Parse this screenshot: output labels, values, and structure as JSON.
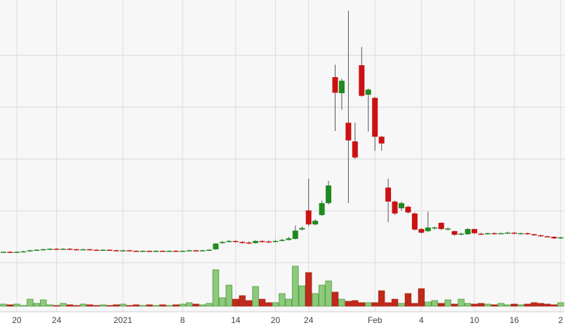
{
  "chart_data": {
    "type": "candlestick",
    "categories": [
      null,
      null,
      "20",
      null,
      null,
      null,
      null,
      null,
      "24",
      null,
      null,
      null,
      null,
      null,
      null,
      null,
      null,
      null,
      "2021",
      null,
      null,
      null,
      null,
      null,
      null,
      null,
      null,
      "8",
      null,
      null,
      null,
      null,
      null,
      null,
      null,
      "14",
      null,
      null,
      null,
      null,
      null,
      "20",
      null,
      null,
      null,
      null,
      "24",
      null,
      null,
      null,
      null,
      null,
      null,
      null,
      null,
      null,
      "Feb",
      null,
      null,
      null,
      null,
      null,
      null,
      "4",
      null,
      null,
      null,
      null,
      null,
      null,
      null,
      "10",
      null,
      null,
      null,
      null,
      null,
      "16",
      null,
      null,
      null,
      null,
      null,
      null,
      "2"
    ],
    "open": [
      20,
      21,
      20,
      21,
      22,
      24,
      25,
      26,
      27,
      26,
      27,
      26,
      25,
      26,
      25,
      24,
      25,
      24,
      23,
      24,
      23,
      22,
      23,
      22,
      23,
      22,
      23,
      22,
      23,
      24,
      23,
      24,
      26,
      38,
      40,
      42,
      40,
      39,
      38,
      42,
      41,
      40,
      42,
      44,
      46,
      64,
      101,
      74,
      92,
      115,
      358,
      327,
      270,
      234,
      381,
      324,
      318,
      243,
      145,
      118,
      105,
      108,
      95,
      65,
      61,
      66,
      77,
      64,
      61,
      55,
      55,
      65,
      56,
      55,
      57,
      56,
      57,
      58,
      56,
      57,
      55,
      53,
      51,
      50,
      47
    ],
    "high": [
      22,
      22,
      22,
      23,
      25,
      26,
      27,
      28,
      28,
      28,
      28,
      27,
      27,
      27,
      26,
      26,
      26,
      25,
      25,
      25,
      24,
      24,
      24,
      24,
      24,
      24,
      24,
      24,
      25,
      25,
      25,
      26,
      38,
      42,
      44,
      43,
      42,
      41,
      44,
      43,
      43,
      44,
      46,
      50,
      72,
      70,
      162,
      84,
      120,
      158,
      382,
      355,
      486,
      270,
      416,
      336,
      320,
      245,
      162,
      120,
      118,
      110,
      97,
      67,
      99,
      70,
      78,
      68,
      62,
      58,
      67,
      66,
      58,
      58,
      59,
      58,
      60,
      59,
      58,
      58,
      56,
      54,
      52,
      51,
      50
    ],
    "low": [
      19,
      19,
      19,
      20,
      21,
      23,
      24,
      25,
      25,
      25,
      25,
      24,
      24,
      24,
      23,
      23,
      23,
      22,
      22,
      22,
      21,
      21,
      21,
      21,
      21,
      21,
      21,
      21,
      22,
      22,
      22,
      23,
      25,
      36,
      39,
      39,
      37,
      36,
      37,
      39,
      39,
      39,
      41,
      43,
      45,
      62,
      70,
      72,
      90,
      112,
      254,
      295,
      115,
      200,
      320,
      253,
      216,
      216,
      78,
      92,
      100,
      95,
      62,
      56,
      59,
      64,
      63,
      62,
      52,
      53,
      54,
      55,
      54,
      54,
      55,
      55,
      56,
      55,
      55,
      54,
      52,
      50,
      49,
      46,
      46
    ],
    "close": [
      21,
      20,
      21,
      22,
      24,
      25,
      26,
      27,
      26,
      27,
      26,
      25,
      26,
      25,
      24,
      25,
      24,
      23,
      24,
      23,
      22,
      23,
      22,
      23,
      22,
      23,
      22,
      23,
      24,
      23,
      24,
      25,
      37,
      40,
      42,
      40,
      39,
      38,
      42,
      41,
      40,
      42,
      44,
      47,
      62,
      67,
      74,
      81,
      115,
      149,
      328,
      351,
      236,
      203,
      322,
      334,
      243,
      230,
      118,
      95,
      115,
      97,
      64,
      58,
      68,
      68,
      65,
      66,
      54,
      56,
      65,
      57,
      55,
      57,
      56,
      57,
      58,
      56,
      57,
      55,
      53,
      51,
      50,
      47,
      49
    ],
    "volume": [
      3,
      2,
      3,
      1,
      10,
      4,
      9,
      2,
      1,
      4,
      2,
      1,
      3,
      2,
      1,
      2,
      1,
      2,
      3,
      1,
      2,
      1,
      2,
      1,
      2,
      1,
      2,
      3,
      5,
      3,
      2,
      4,
      52,
      12,
      30,
      10,
      15,
      8,
      28,
      10,
      5,
      5,
      18,
      10,
      57,
      29,
      48,
      18,
      30,
      36,
      20,
      10,
      7,
      8,
      5,
      5,
      5,
      22,
      5,
      10,
      4,
      18,
      4,
      25,
      6,
      8,
      4,
      9,
      3,
      10,
      4,
      3,
      4,
      3,
      2,
      4,
      2,
      3,
      2,
      3,
      5,
      4,
      3,
      2,
      5
    ],
    "up_color": "#1f8a1f",
    "down_color": "#cc1111",
    "volume_up_color": "#8dc97b",
    "volume_down_color": "#c0291b",
    "ylim": [
      0,
      500
    ],
    "ygrid": [
      0,
      100,
      200,
      300,
      400
    ],
    "volume_ylim": [
      0,
      60
    ],
    "grid": true
  }
}
